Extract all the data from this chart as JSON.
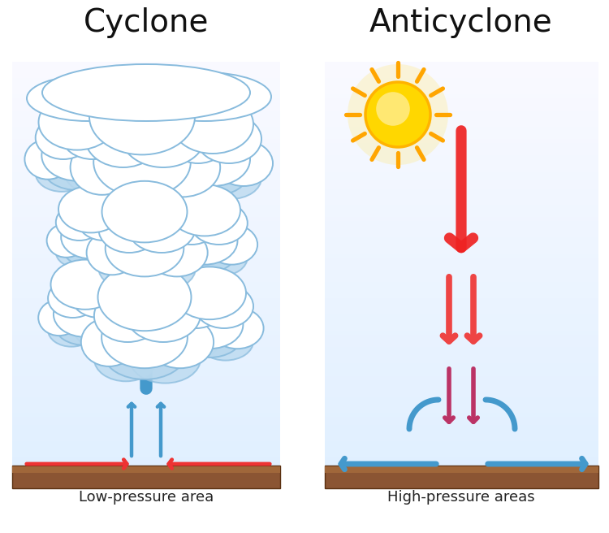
{
  "title_left": "Cyclone",
  "title_right": "Anticyclone",
  "label_left": "Low-pressure area",
  "label_right": "High-pressure areas",
  "bg_color": "#ffffff",
  "arrow_blue": "#4499cc",
  "arrow_red": "#ee3333",
  "sun_color": "#FFD700",
  "sun_edge": "#FFB300",
  "sun_ray": "#FFA500",
  "ground_color": "#8B5533",
  "ground_top": "#A0673A",
  "cloud_white": "#ffffff",
  "cloud_shadow": "#b8d8ee",
  "cloud_edge": "#88bbdd",
  "title_fontsize": 28,
  "label_fontsize": 13
}
